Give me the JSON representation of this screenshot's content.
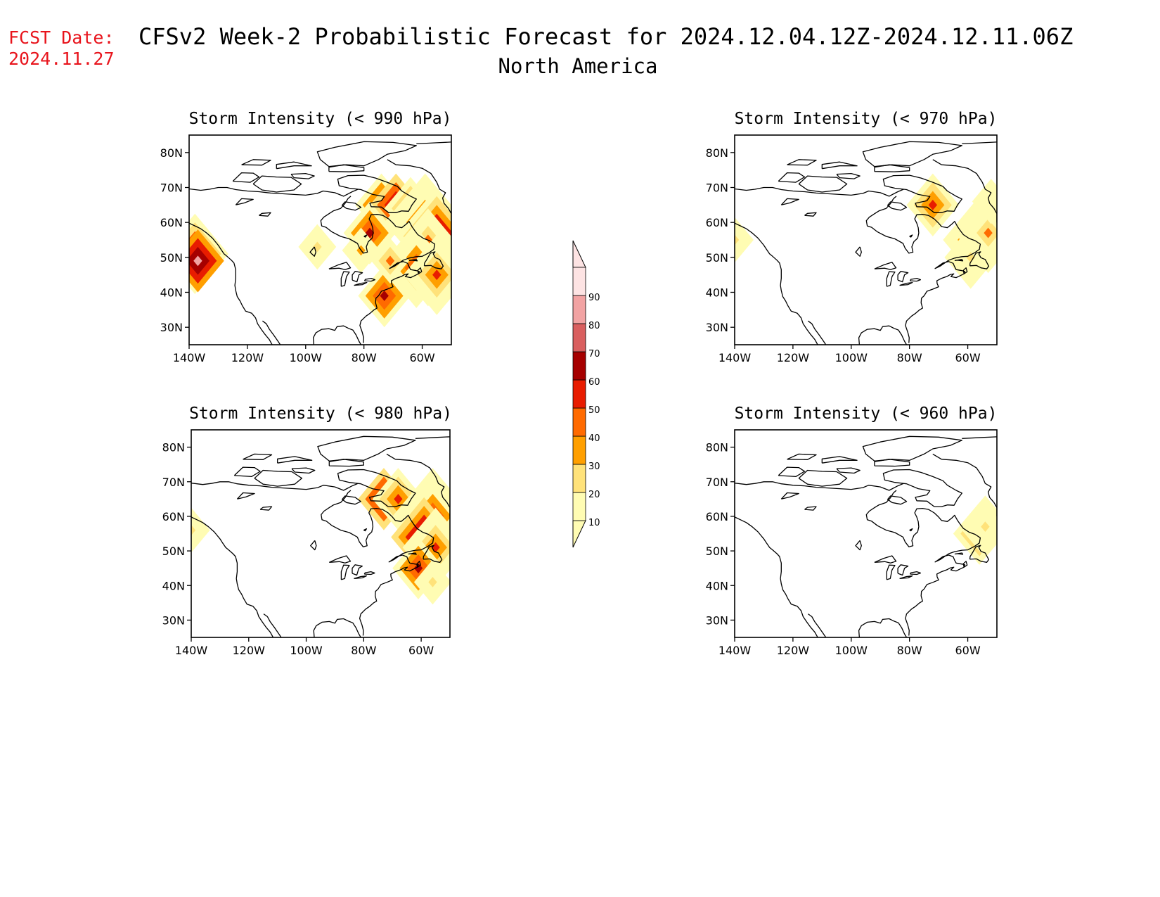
{
  "header": {
    "fcst_label": "FCST Date:",
    "fcst_date": "2024.11.27",
    "title": "CFSv2 Week-2 Probabilistic Forecast for 2024.12.04.12Z-2024.12.11.06Z",
    "region": "North America"
  },
  "map_extent": {
    "lon": [
      -140,
      -50
    ],
    "lat": [
      25,
      85
    ]
  },
  "axis_ticks": {
    "lat": [
      "80N",
      "70N",
      "60N",
      "50N",
      "40N",
      "30N"
    ],
    "lat_values": [
      80,
      70,
      60,
      50,
      40,
      30
    ],
    "lon": [
      "140W",
      "120W",
      "100W",
      "80W",
      "60W"
    ],
    "lon_values": [
      -140,
      -120,
      -100,
      -80,
      -60
    ]
  },
  "colorbar": {
    "levels": [
      "10",
      "20",
      "30",
      "40",
      "50",
      "60",
      "70",
      "80",
      "90"
    ],
    "colors": [
      "#fffcb3",
      "#ffe27a",
      "#ff9f00",
      "#ff6a00",
      "#e81c00",
      "#a60000",
      "#d95f5f",
      "#f2a3a3",
      "#fde3e3"
    ]
  },
  "panels": [
    {
      "id": "p990",
      "title": "Storm Intensity (< 990 hPa)",
      "blobs": [
        {
          "lon": -138,
          "lat": 51,
          "val": 70,
          "r": 3
        },
        {
          "lon": -137,
          "lat": 49,
          "val": 80,
          "r": 2
        },
        {
          "lon": -74,
          "lat": 65,
          "val": 60,
          "r": 2
        },
        {
          "lon": -69,
          "lat": 65,
          "val": 70,
          "r": 2
        },
        {
          "lon": -64,
          "lat": 64,
          "val": 50,
          "r": 2
        },
        {
          "lon": -78,
          "lat": 57,
          "val": 60,
          "r": 2
        },
        {
          "lon": -59,
          "lat": 60,
          "val": 60,
          "r": 4
        },
        {
          "lon": -55,
          "lat": 56,
          "val": 80,
          "r": 4
        },
        {
          "lon": -58,
          "lat": 50,
          "val": 70,
          "r": 4
        },
        {
          "lon": -62,
          "lat": 47,
          "val": 60,
          "r": 3
        },
        {
          "lon": -55,
          "lat": 45,
          "val": 50,
          "r": 3
        },
        {
          "lon": -73,
          "lat": 39,
          "val": 60,
          "r": 2
        },
        {
          "lon": -81,
          "lat": 52,
          "val": 30,
          "r": 1
        },
        {
          "lon": -71,
          "lat": 49,
          "val": 40,
          "r": 1
        },
        {
          "lon": -96,
          "lat": 53,
          "val": 20,
          "r": 1
        }
      ]
    },
    {
      "id": "p970",
      "title": "Storm Intensity (< 970 hPa)",
      "blobs": [
        {
          "lon": -72,
          "lat": 65,
          "val": 50,
          "r": 2
        },
        {
          "lon": -57,
          "lat": 55,
          "val": 60,
          "r": 3
        },
        {
          "lon": -53,
          "lat": 57,
          "val": 40,
          "r": 3
        },
        {
          "lon": -59,
          "lat": 50,
          "val": 20,
          "r": 2
        },
        {
          "lon": -140,
          "lat": 55,
          "val": 20,
          "r": 1
        },
        {
          "lon": -52,
          "lat": 66,
          "val": 10,
          "r": 1
        }
      ]
    },
    {
      "id": "p980",
      "title": "Storm Intensity (< 980 hPa)",
      "blobs": [
        {
          "lon": -73,
          "lat": 65,
          "val": 70,
          "r": 2
        },
        {
          "lon": -68,
          "lat": 65,
          "val": 50,
          "r": 2
        },
        {
          "lon": -56,
          "lat": 60,
          "val": 60,
          "r": 4
        },
        {
          "lon": -59,
          "lat": 54,
          "val": 80,
          "r": 3
        },
        {
          "lon": -55,
          "lat": 51,
          "val": 50,
          "r": 3
        },
        {
          "lon": -61,
          "lat": 45,
          "val": 60,
          "r": 2
        },
        {
          "lon": -140,
          "lat": 56,
          "val": 20,
          "r": 1
        },
        {
          "lon": -56,
          "lat": 41,
          "val": 20,
          "r": 1
        }
      ]
    },
    {
      "id": "p960",
      "title": "Storm Intensity (< 960 hPa)",
      "blobs": [
        {
          "lon": -56,
          "lat": 55,
          "val": 50,
          "r": 2
        },
        {
          "lon": -54,
          "lat": 57,
          "val": 20,
          "r": 2
        }
      ]
    }
  ]
}
